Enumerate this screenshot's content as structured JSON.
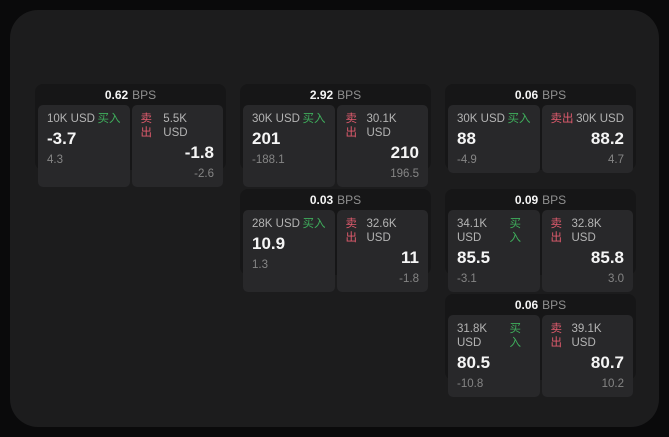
{
  "theme": {
    "outer_bg": "#0a0a0b",
    "panel_bg": "#1c1c1d",
    "card_header_bg": "#161617",
    "tile_bg": "#28282a",
    "buy_color": "#3fae5c",
    "sell_color": "#e05b6d",
    "value_color": "#f5f5f5",
    "label_color": "#b4b4b4",
    "dim_color": "#858585"
  },
  "labels": {
    "bps_unit": "BPS",
    "buy": "买入",
    "sell": "卖出"
  },
  "cards": [
    {
      "row": 1,
      "col": 1,
      "bps": "0.62",
      "buy": {
        "amount": "10K USD",
        "value": "-3.7",
        "sub": "4.3"
      },
      "sell": {
        "amount": "5.5K USD",
        "value": "-1.8",
        "sub": "-2.6"
      }
    },
    {
      "row": 1,
      "col": 2,
      "bps": "2.92",
      "buy": {
        "amount": "30K USD",
        "value": "201",
        "sub": "-188.1"
      },
      "sell": {
        "amount": "30.1K USD",
        "value": "210",
        "sub": "196.5"
      }
    },
    {
      "row": 1,
      "col": 3,
      "bps": "0.06",
      "buy": {
        "amount": "30K USD",
        "value": "88",
        "sub": "-4.9"
      },
      "sell": {
        "amount": "30K USD",
        "value": "88.2",
        "sub": "4.7"
      }
    },
    {
      "row": 2,
      "col": 2,
      "bps": "0.03",
      "buy": {
        "amount": "28K USD",
        "value": "10.9",
        "sub": "1.3"
      },
      "sell": {
        "amount": "32.6K USD",
        "value": "11",
        "sub": "-1.8"
      }
    },
    {
      "row": 2,
      "col": 3,
      "bps": "0.09",
      "buy": {
        "amount": "34.1K USD",
        "value": "85.5",
        "sub": "-3.1"
      },
      "sell": {
        "amount": "32.8K USD",
        "value": "85.8",
        "sub": "3.0"
      }
    },
    {
      "row": 3,
      "col": 3,
      "bps": "0.06",
      "buy": {
        "amount": "31.8K USD",
        "value": "80.5",
        "sub": "-10.8"
      },
      "sell": {
        "amount": "39.1K USD",
        "value": "80.7",
        "sub": "10.2"
      }
    }
  ]
}
